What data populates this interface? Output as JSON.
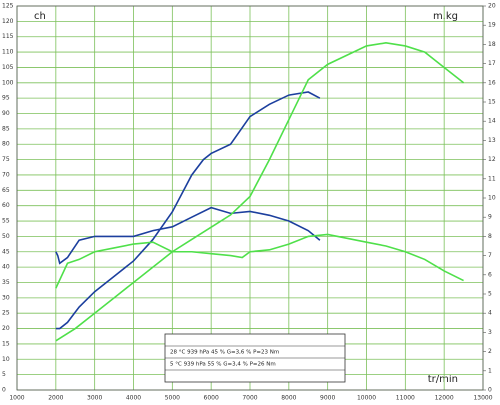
{
  "chart_data": {
    "type": "line",
    "ylabel": "ch",
    "y2label": "m.kg",
    "xlabel": "tr/min",
    "xlim": [
      1000,
      13000
    ],
    "xticks": [
      1000,
      2000,
      3000,
      4000,
      5000,
      6000,
      7000,
      8000,
      9000,
      10000,
      11000,
      12000,
      13000
    ],
    "ylim": [
      0,
      125
    ],
    "yticks": [
      0,
      5,
      10,
      15,
      20,
      25,
      30,
      35,
      40,
      45,
      50,
      55,
      60,
      65,
      70,
      75,
      80,
      85,
      90,
      95,
      100,
      105,
      110,
      115,
      120,
      125
    ],
    "y2lim": [
      0,
      20
    ],
    "y2ticks": [
      0,
      1,
      2,
      3,
      4,
      5,
      6,
      7,
      8,
      9,
      10,
      11,
      12,
      13,
      14,
      15,
      16,
      17,
      18,
      19,
      20
    ],
    "grid": true,
    "grid_color": "#7cc05a",
    "series": [
      {
        "color": "#1c3f9e",
        "x": [
          2000,
          2100,
          2300,
          2600,
          3000,
          3500,
          4000,
          4500,
          5000,
          5500,
          5800,
          6000,
          6500,
          7000,
          7500,
          8000,
          8500,
          8800
        ],
        "values": [
          20,
          20,
          22,
          27,
          32,
          37,
          42,
          49,
          58,
          70,
          75,
          77,
          80,
          89,
          93,
          96,
          97,
          95
        ]
      },
      {
        "color": "#1c3f9e",
        "axis": "y2",
        "x": [
          2000,
          2050,
          2100,
          2300,
          2600,
          3000,
          3500,
          4000,
          4500,
          5000,
          5500,
          6000,
          6500,
          7000,
          7500,
          8000,
          8500,
          8800
        ],
        "values": [
          7.2,
          7.0,
          6.6,
          6.9,
          7.8,
          8.0,
          8.0,
          8.0,
          8.3,
          8.5,
          9.0,
          9.5,
          9.2,
          9.3,
          9.1,
          8.8,
          8.3,
          7.8
        ]
      },
      {
        "color": "#4fe04a",
        "x": [
          2000,
          2500,
          3000,
          3500,
          4000,
          4500,
          5000,
          5500,
          6000,
          6500,
          7000,
          7500,
          8000,
          8500,
          9000,
          9500,
          10000,
          10500,
          11000,
          11500,
          12000,
          12500
        ],
        "values": [
          16,
          20,
          25,
          30,
          35,
          40,
          45,
          49,
          53,
          57,
          63,
          75,
          88,
          101,
          106,
          109,
          112,
          113,
          112,
          110,
          105,
          100
        ]
      },
      {
        "color": "#4fe04a",
        "axis": "y2",
        "x": [
          2000,
          2300,
          2600,
          3000,
          3500,
          4000,
          4500,
          5000,
          5500,
          6000,
          6500,
          6800,
          7000,
          7500,
          8000,
          8500,
          9000,
          9500,
          10000,
          10500,
          11000,
          11500,
          12000,
          12500
        ],
        "values": [
          5.3,
          6.6,
          6.8,
          7.2,
          7.4,
          7.6,
          7.7,
          7.2,
          7.2,
          7.1,
          7.0,
          6.9,
          7.2,
          7.3,
          7.6,
          8.0,
          8.1,
          7.9,
          7.7,
          7.5,
          7.2,
          6.8,
          6.2,
          5.7
        ]
      }
    ],
    "annotations": [
      "28 °C   939 hPa   45 %   G=3,6 %   P=23 Nm",
      "5 °C   939 hPa   55 %   G=3,4 %   P=26 Nm"
    ]
  }
}
